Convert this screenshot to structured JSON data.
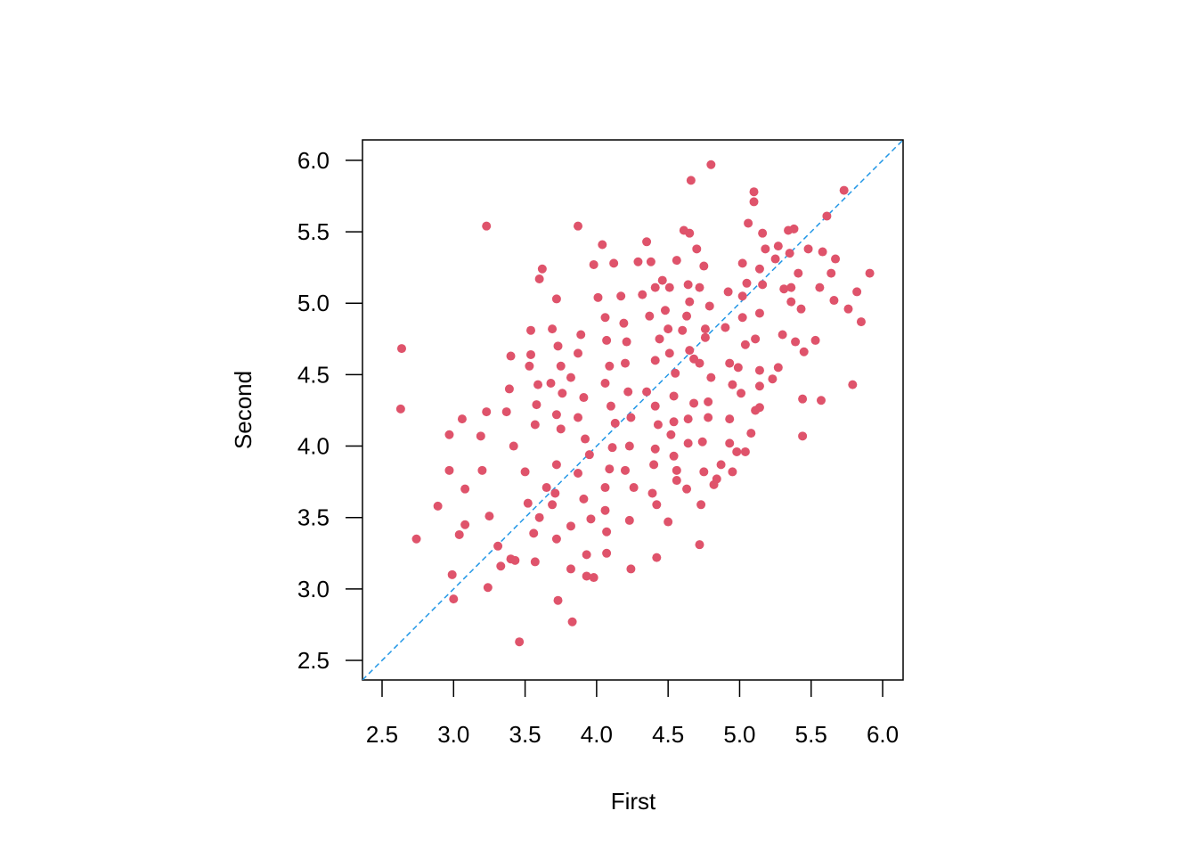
{
  "chart_data": {
    "type": "scatter",
    "x_label": "First",
    "y_label": "Second",
    "xlim": [
      2.363,
      6.143
    ],
    "ylim": [
      2.363,
      6.143
    ],
    "xticks": [
      2.5,
      {
        "value": 3,
        "label": "3.0"
      },
      3.5,
      {
        "value": 4,
        "label": "4.0"
      },
      4.5,
      {
        "value": 5,
        "label": "5.0"
      },
      5.5,
      {
        "value": 6,
        "label": "6.0"
      }
    ],
    "yticks": [
      2.5,
      {
        "value": 3,
        "label": "3.0"
      },
      3.5,
      {
        "value": 4,
        "label": "4.0"
      },
      4.5,
      {
        "value": 5,
        "label": "5.0"
      },
      5.5,
      {
        "value": 6,
        "label": "6.0"
      }
    ],
    "color": "#df536b",
    "reference_line": {
      "slope": 1,
      "intercept": 0,
      "color": "#2297e6"
    },
    "x": [
      2.637,
      2.63,
      2.74,
      2.89,
      3.0,
      2.99,
      2.97,
      2.97,
      3.06,
      3.04,
      3.08,
      3.08,
      3.23,
      3.23,
      3.24,
      3.25,
      3.2,
      3.19,
      3.46,
      3.31,
      3.33,
      3.4,
      3.43,
      3.4,
      3.37,
      3.39,
      3.42,
      3.62,
      3.6,
      3.54,
      3.53,
      3.54,
      3.59,
      3.58,
      3.57,
      3.5,
      3.52,
      3.56,
      3.57,
      3.6,
      3.65,
      3.72,
      3.69,
      3.73,
      3.75,
      3.68,
      3.76,
      3.72,
      3.75,
      3.72,
      3.71,
      3.69,
      3.72,
      3.73,
      3.83,
      3.82,
      3.82,
      3.87,
      3.89,
      3.87,
      3.82,
      3.91,
      3.87,
      3.92,
      3.95,
      3.87,
      3.91,
      3.93,
      3.93,
      3.98,
      3.96,
      3.98,
      4.01,
      4.04,
      4.06,
      4.07,
      4.09,
      4.06,
      4.1,
      4.13,
      4.11,
      4.09,
      4.06,
      4.06,
      4.07,
      4.07,
      4.12,
      4.17,
      4.19,
      4.21,
      4.2,
      4.22,
      4.24,
      4.23,
      4.2,
      4.26,
      4.23,
      4.24,
      4.29,
      4.32,
      4.35,
      4.38,
      4.41,
      4.37,
      4.44,
      4.41,
      4.35,
      4.41,
      4.43,
      4.41,
      4.4,
      4.39,
      4.42,
      4.42,
      4.46,
      4.51,
      4.48,
      4.5,
      4.51,
      4.55,
      4.54,
      4.54,
      4.52,
      4.54,
      4.56,
      4.56,
      4.5,
      4.61,
      4.65,
      4.66,
      4.56,
      4.64,
      4.65,
      4.63,
      4.6,
      4.65,
      4.68,
      4.68,
      4.64,
      4.64,
      4.63,
      4.72,
      4.73,
      4.8,
      4.7,
      4.75,
      4.72,
      4.79,
      4.76,
      4.76,
      4.72,
      4.8,
      4.78,
      4.78,
      4.74,
      4.75,
      4.82,
      4.84,
      4.87,
      4.92,
      4.9,
      4.93,
      4.95,
      4.93,
      4.93,
      4.95,
      4.98,
      5.1,
      5.1,
      5.06,
      5.02,
      5.05,
      5.02,
      5.02,
      5.04,
      4.99,
      5.01,
      5.08,
      5.04,
      5.16,
      5.18,
      5.14,
      5.16,
      5.14,
      5.11,
      5.14,
      5.14,
      5.14,
      5.11,
      5.27,
      5.25,
      5.34,
      5.38,
      5.35,
      5.31,
      5.36,
      5.3,
      5.27,
      5.23,
      5.41,
      5.36,
      5.43,
      5.39,
      5.45,
      5.44,
      5.44,
      5.48,
      5.53,
      5.56,
      5.57,
      5.58,
      5.61,
      5.64,
      5.66,
      5.67,
      5.73,
      5.76,
      5.79,
      5.82,
      5.85,
      5.91
    ],
    "y": [
      4.683,
      4.26,
      3.35,
      3.58,
      2.93,
      3.1,
      3.83,
      4.08,
      4.19,
      3.38,
      3.45,
      3.7,
      5.54,
      4.24,
      3.01,
      3.51,
      3.83,
      4.07,
      2.63,
      3.3,
      3.16,
      3.21,
      3.2,
      4.63,
      4.24,
      4.4,
      4.0,
      5.24,
      5.17,
      4.81,
      4.56,
      4.64,
      4.43,
      4.29,
      4.15,
      3.82,
      3.6,
      3.39,
      3.19,
      3.5,
      3.71,
      5.03,
      4.82,
      4.7,
      4.56,
      4.44,
      4.37,
      4.22,
      4.12,
      3.87,
      3.67,
      3.59,
      3.35,
      2.92,
      2.77,
      3.14,
      3.44,
      5.54,
      4.78,
      4.65,
      4.48,
      4.34,
      4.2,
      4.05,
      3.94,
      3.81,
      3.63,
      3.24,
      3.09,
      3.08,
      3.49,
      5.27,
      5.04,
      5.41,
      4.9,
      4.74,
      4.56,
      4.44,
      4.28,
      4.16,
      3.99,
      3.84,
      3.71,
      3.55,
      3.4,
      3.25,
      5.28,
      5.05,
      4.86,
      4.73,
      4.58,
      4.38,
      4.2,
      4.0,
      3.83,
      3.71,
      3.48,
      3.14,
      5.29,
      5.06,
      5.43,
      5.29,
      5.11,
      4.91,
      4.75,
      4.6,
      4.38,
      4.28,
      4.15,
      3.98,
      3.87,
      3.67,
      3.59,
      3.22,
      5.16,
      5.11,
      4.95,
      4.82,
      4.65,
      4.51,
      4.35,
      4.17,
      4.08,
      3.93,
      3.83,
      3.76,
      3.47,
      5.51,
      5.49,
      5.86,
      5.3,
      5.13,
      5.01,
      4.91,
      4.81,
      4.67,
      4.61,
      4.3,
      4.19,
      4.02,
      3.7,
      3.31,
      3.59,
      5.97,
      5.38,
      5.26,
      5.11,
      4.98,
      4.82,
      4.76,
      4.58,
      4.48,
      4.31,
      4.2,
      4.03,
      3.82,
      3.73,
      3.77,
      3.87,
      5.08,
      4.83,
      4.58,
      4.43,
      4.19,
      4.02,
      3.82,
      3.96,
      5.78,
      5.71,
      5.56,
      5.28,
      5.14,
      5.05,
      4.9,
      4.71,
      4.55,
      4.37,
      4.09,
      3.96,
      5.49,
      5.38,
      5.24,
      5.13,
      4.93,
      4.75,
      4.53,
      4.42,
      4.27,
      4.25,
      5.4,
      5.31,
      5.51,
      5.52,
      5.35,
      5.1,
      5.01,
      4.78,
      4.55,
      4.47,
      5.21,
      5.11,
      4.96,
      4.73,
      4.66,
      4.33,
      4.07,
      5.38,
      4.74,
      5.11,
      4.32,
      5.36,
      5.61,
      5.21,
      5.02,
      5.31,
      5.79,
      4.96,
      4.43,
      5.08,
      4.87,
      5.21
    ]
  }
}
